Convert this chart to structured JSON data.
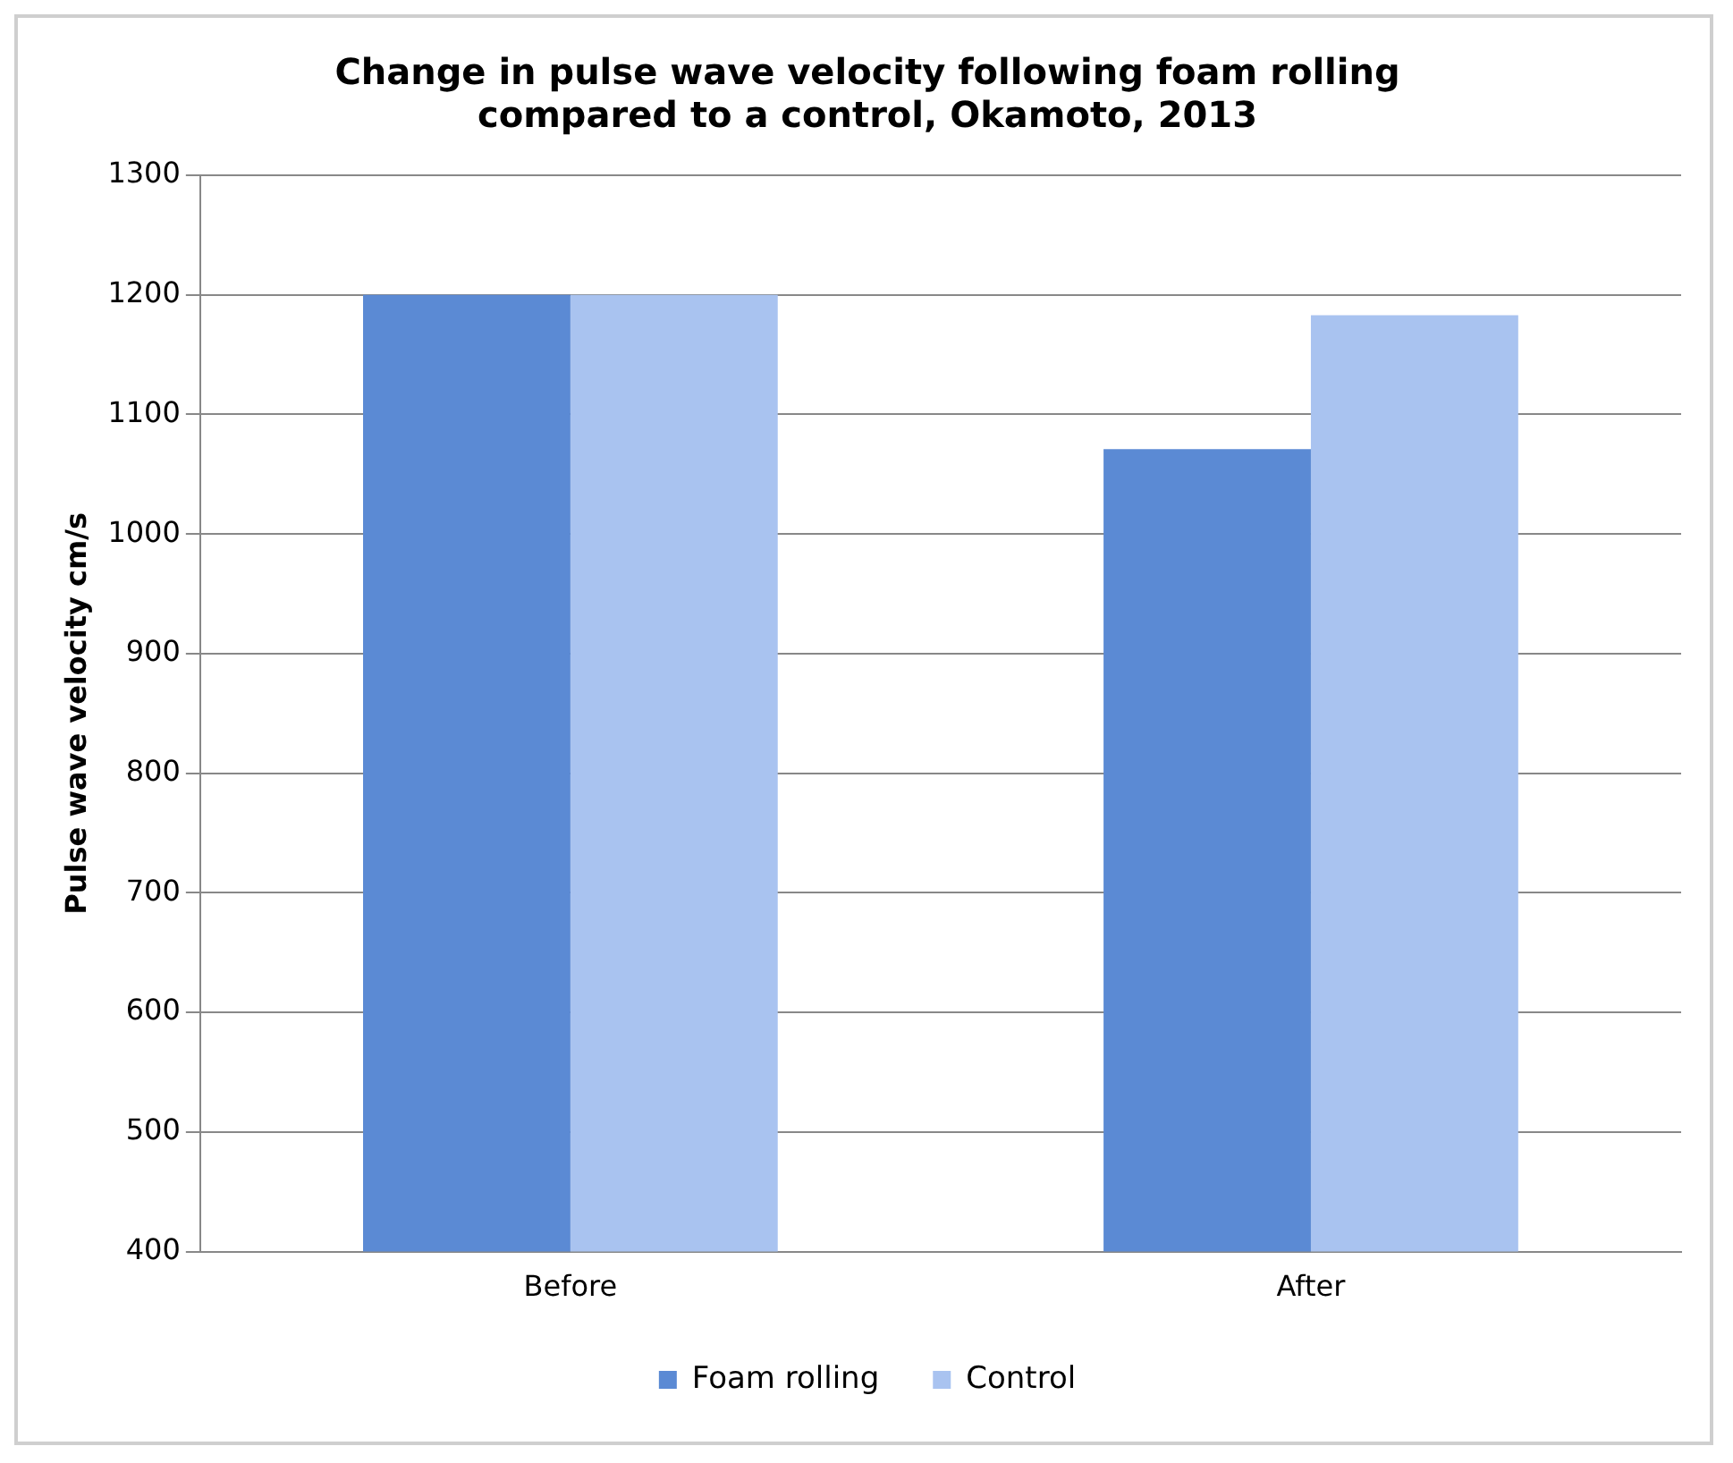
{
  "chart_data": {
    "type": "bar",
    "title": "Change in pulse wave velocity following foam rolling compared to a control, Okamoto, 2013",
    "ylabel": "Pulse wave velocity cm/s",
    "categories": [
      "Before",
      "After"
    ],
    "series": [
      {
        "name": "Foam rolling",
        "color": "#5b8ad4",
        "values": [
          1200,
          1071
        ]
      },
      {
        "name": "Control",
        "color": "#a9c3f0",
        "values": [
          1200,
          1183
        ]
      }
    ],
    "ylim": [
      400,
      1300
    ],
    "yticks": [
      400,
      500,
      600,
      700,
      800,
      900,
      1000,
      1100,
      1200,
      1300
    ],
    "grid": "y",
    "legend": "bottom"
  }
}
